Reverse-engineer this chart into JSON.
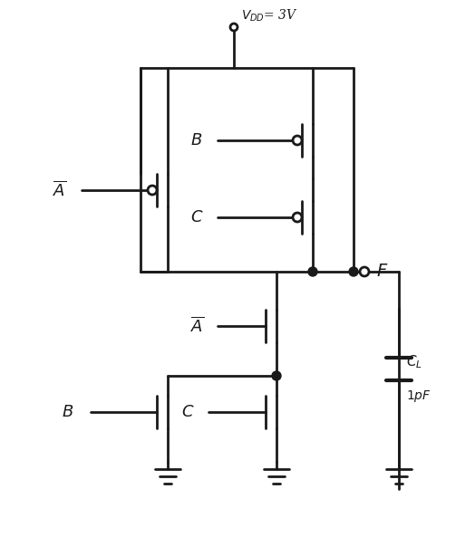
{
  "background_color": "#ffffff",
  "line_color": "#1a1a1a",
  "line_width": 2.0,
  "fig_width": 5.24,
  "fig_height": 5.93,
  "dpi": 100
}
